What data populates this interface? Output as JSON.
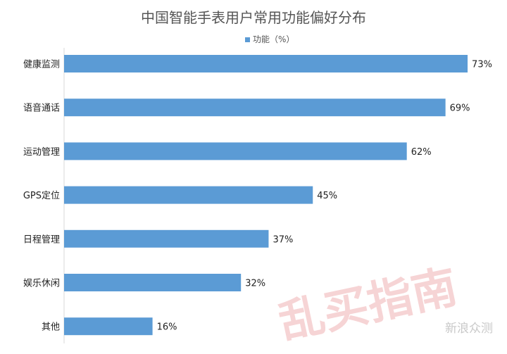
{
  "chart_data": {
    "type": "bar",
    "orientation": "horizontal",
    "title": "中国智能手表用户常用功能偏好分布",
    "legend": "功能（%）",
    "legend_position": "top",
    "categories": [
      "健康监测",
      "语音通话",
      "运动管理",
      "GPS定位",
      "日程管理",
      "娱乐休闲",
      "其他"
    ],
    "series": [
      {
        "name": "功能（%）",
        "values": [
          73,
          69,
          62,
          45,
          37,
          32,
          16
        ],
        "labels": [
          "73%",
          "69%",
          "62%",
          "45%",
          "37%",
          "32%",
          "16%"
        ]
      }
    ],
    "xlim": [
      0,
      100
    ],
    "grid": false,
    "bar_color": "#5b9bd5"
  },
  "watermark": {
    "text": "乱买指南"
  },
  "brand": {
    "text": "新浪众测"
  }
}
